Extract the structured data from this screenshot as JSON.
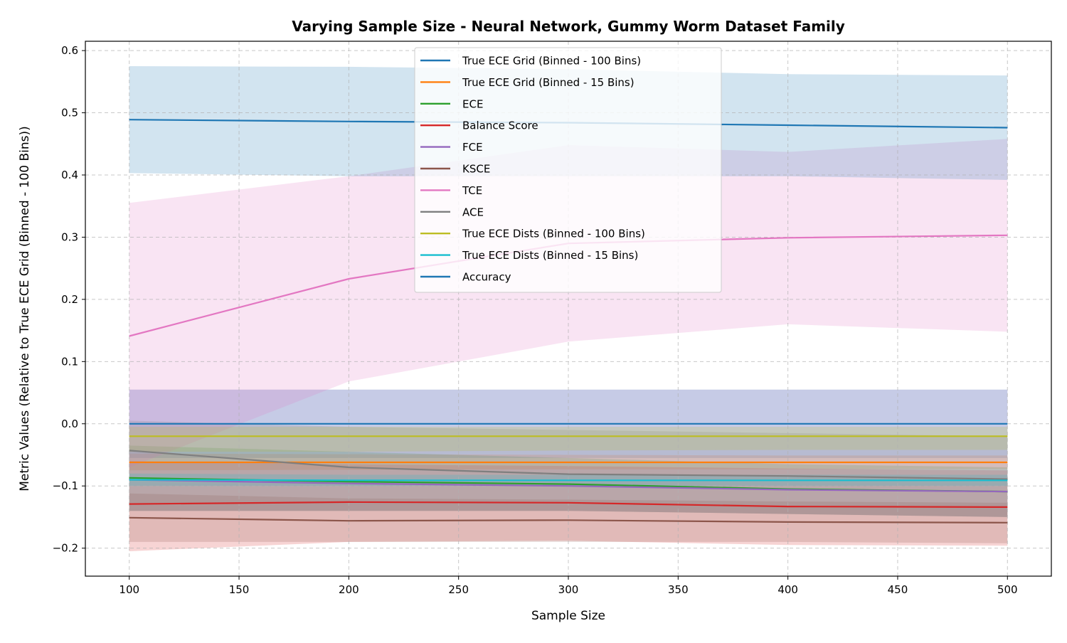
{
  "chart_data": {
    "type": "line",
    "title": "Varying Sample Size - Neural Network, Gummy Worm Dataset Family",
    "xlabel": "Sample Size",
    "ylabel": "Metric Values (Relative to True ECE Grid (Binned - 100 Bins))",
    "x": [
      100,
      200,
      300,
      400,
      500
    ],
    "xlim": [
      80,
      520
    ],
    "ylim": [
      -0.245,
      0.615
    ],
    "xticks": [
      100,
      150,
      200,
      250,
      300,
      350,
      400,
      450,
      500
    ],
    "yticks": [
      -0.2,
      -0.1,
      0.0,
      0.1,
      0.2,
      0.3,
      0.4,
      0.5,
      0.6
    ],
    "ytick_labels": [
      "−0.2",
      "−0.1",
      "0.0",
      "0.1",
      "0.2",
      "0.3",
      "0.4",
      "0.5",
      "0.6"
    ],
    "grid": true,
    "legend_position": "upper-center",
    "series": [
      {
        "name": "True ECE Grid (Binned - 100 Bins)",
        "color": "#1f77b4",
        "values": [
          0.0,
          0.0,
          0.0,
          0.0,
          0.0
        ],
        "lower": [
          -0.055,
          -0.055,
          -0.055,
          -0.055,
          -0.055
        ],
        "upper": [
          0.055,
          0.055,
          0.055,
          0.055,
          0.055
        ]
      },
      {
        "name": "True ECE Grid (Binned - 15 Bins)",
        "color": "#ff7f0e",
        "values": [
          -0.062,
          -0.062,
          -0.062,
          -0.062,
          -0.062
        ],
        "lower": [
          -0.075,
          -0.074,
          -0.073,
          -0.073,
          -0.073
        ],
        "upper": [
          -0.048,
          -0.049,
          -0.05,
          -0.051,
          -0.051
        ]
      },
      {
        "name": "ECE",
        "color": "#2ca02c",
        "values": [
          -0.087,
          -0.093,
          -0.097,
          -0.105,
          -0.109
        ],
        "lower": [
          -0.14,
          -0.14,
          -0.14,
          -0.145,
          -0.15
        ],
        "upper": [
          -0.035,
          -0.045,
          -0.055,
          -0.065,
          -0.07
        ]
      },
      {
        "name": "Balance Score",
        "color": "#d62728",
        "values": [
          -0.129,
          -0.126,
          -0.127,
          -0.133,
          -0.134
        ],
        "lower": [
          -0.205,
          -0.19,
          -0.188,
          -0.195,
          -0.196
        ],
        "upper": [
          -0.06,
          -0.065,
          -0.068,
          -0.072,
          -0.075
        ]
      },
      {
        "name": "FCE",
        "color": "#9467bd",
        "values": [
          -0.09,
          -0.096,
          -0.1,
          -0.106,
          -0.109
        ],
        "lower": [
          -0.14,
          -0.14,
          -0.14,
          -0.145,
          -0.15
        ],
        "upper": [
          0.055,
          0.055,
          0.055,
          0.055,
          0.055
        ]
      },
      {
        "name": "KSCE",
        "color": "#8c564b",
        "values": [
          -0.151,
          -0.156,
          -0.155,
          -0.158,
          -0.159
        ],
        "lower": [
          -0.19,
          -0.19,
          -0.19,
          -0.19,
          -0.192
        ],
        "upper": [
          -0.112,
          -0.12,
          -0.122,
          -0.125,
          -0.127
        ]
      },
      {
        "name": "TCE",
        "color": "#e377c2",
        "values": [
          0.141,
          0.233,
          0.29,
          0.299,
          0.303
        ],
        "lower": [
          -0.07,
          0.068,
          0.132,
          0.16,
          0.148
        ],
        "upper": [
          0.355,
          0.398,
          0.448,
          0.437,
          0.458
        ]
      },
      {
        "name": "ACE",
        "color": "#7f7f7f",
        "values": [
          -0.043,
          -0.07,
          -0.081,
          -0.084,
          -0.089
        ],
        "lower": [
          -0.14,
          -0.14,
          -0.14,
          -0.145,
          -0.15
        ],
        "upper": [
          0.005,
          -0.005,
          -0.01,
          -0.015,
          -0.02
        ]
      },
      {
        "name": "True ECE Dists (Binned - 100 Bins)",
        "color": "#bcbd22",
        "values": [
          -0.02,
          -0.02,
          -0.02,
          -0.02,
          -0.02
        ],
        "lower": [
          -0.045,
          -0.045,
          -0.043,
          -0.042,
          -0.042
        ],
        "upper": [
          -0.005,
          -0.005,
          -0.005,
          -0.005,
          -0.005
        ]
      },
      {
        "name": "True ECE Dists (Binned - 15 Bins)",
        "color": "#17becf",
        "values": [
          -0.09,
          -0.091,
          -0.091,
          -0.091,
          -0.091
        ],
        "lower": [
          -0.1,
          -0.1,
          -0.1,
          -0.1,
          -0.1
        ],
        "upper": [
          -0.08,
          -0.082,
          -0.082,
          -0.082,
          -0.082
        ]
      },
      {
        "name": "Accuracy",
        "color": "#1f77b4",
        "values": [
          0.489,
          0.486,
          0.484,
          0.48,
          0.476
        ],
        "lower": [
          0.403,
          0.398,
          0.398,
          0.398,
          0.392
        ],
        "upper": [
          0.575,
          0.574,
          0.57,
          0.562,
          0.56
        ]
      }
    ]
  }
}
